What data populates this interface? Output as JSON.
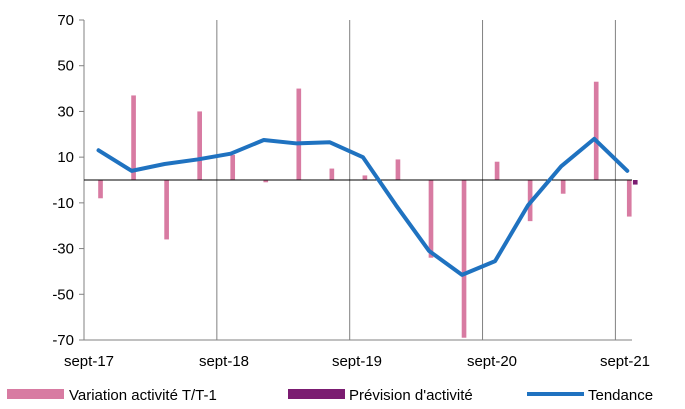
{
  "chart_data": {
    "type": "bar",
    "x_tick_labels": [
      "sept-17",
      "sept-18",
      "sept-19",
      "sept-20",
      "sept-21"
    ],
    "ylim": [
      -70,
      70
    ],
    "y_ticks": [
      -70,
      -50,
      -30,
      -10,
      10,
      30,
      50,
      70
    ],
    "grid": "vertical lines at each year",
    "legend_position": "bottom",
    "periods": 17,
    "series": [
      {
        "name": "Variation activité T/T-1",
        "kind": "bar",
        "color": "#d87ba2",
        "values": [
          -8,
          37,
          -26,
          30,
          11,
          -1,
          40,
          5,
          2,
          9,
          -34,
          -69,
          8,
          -18,
          -6,
          43,
          -16
        ]
      },
      {
        "name": "Prévision d'activité",
        "kind": "bar",
        "color": "#7b1c71",
        "values": [
          null,
          null,
          null,
          null,
          null,
          null,
          null,
          null,
          null,
          null,
          null,
          null,
          null,
          null,
          null,
          null,
          -2
        ]
      },
      {
        "name": "Tendance",
        "kind": "line",
        "color": "#1f72c0",
        "values": [
          13,
          4,
          7,
          9,
          11.5,
          17.5,
          16,
          16.5,
          10,
          -11,
          -31,
          -41.5,
          -35.5,
          -11,
          6,
          18,
          4
        ]
      }
    ]
  }
}
